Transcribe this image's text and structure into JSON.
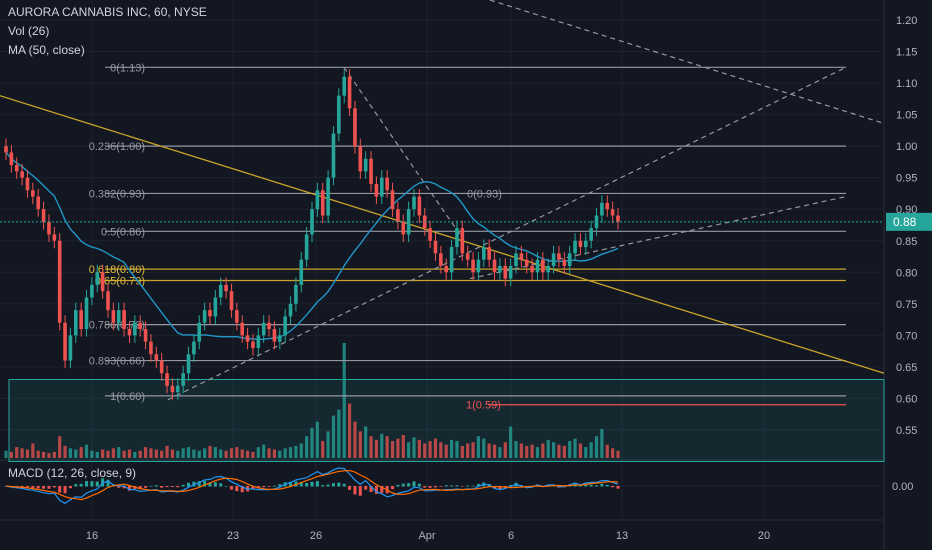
{
  "header": {
    "title": "AURORA CANNABIS INC, 60, NYSE",
    "vol_label": "Vol (26)",
    "ma_label": "MA (50, close)",
    "macd_label": "MACD (12, 26, close, 9)"
  },
  "colors": {
    "background": "#131722",
    "grid": "#1e222d",
    "up": "#26a69a",
    "down": "#ef5350",
    "fib_line": "#9598a1",
    "fib_golden": "#c9a32a",
    "trendline": "#c9a32a",
    "ma": "#2196c8",
    "macd": "#2196f3",
    "signal": "#ff6d00",
    "price_tag": "#26a69a",
    "red_level": "#ef5350"
  },
  "price_tag": "0.88",
  "macd_tick": "0.00",
  "chart_data": {
    "type": "candlestick",
    "ylim": [
      0.5,
      1.22
    ],
    "y_ticks": [
      "1.20",
      "1.15",
      "1.10",
      "1.05",
      "1.00",
      "0.95",
      "0.90",
      "0.85",
      "0.80",
      "0.75",
      "0.70",
      "0.65",
      "0.60",
      "0.55"
    ],
    "x_ticks": [
      "16",
      "23",
      "26",
      "Apr",
      "6",
      "13",
      "20"
    ],
    "last_price": 0.88,
    "fib_levels": [
      {
        "label": "0(1.13)",
        "value": 1.125
      },
      {
        "label": "0.236(1.00)",
        "value": 1.0
      },
      {
        "label": "0.382(0.93)",
        "value": 0.925
      },
      {
        "label": "0.5(0.86)",
        "value": 0.865
      },
      {
        "label": "0.618(0.80)",
        "value": 0.805,
        "golden": true
      },
      {
        "label": "0.65(0.79)",
        "value": 0.787,
        "golden": true
      },
      {
        "label": "0.786(0.72)",
        "value": 0.717
      },
      {
        "label": "0.893(0.66)",
        "value": 0.66
      },
      {
        "label": "1(0.60)",
        "value": 0.604
      }
    ],
    "fib_extension_label": "0(0.93)",
    "red_level": {
      "label": "1(0.59)",
      "value": 0.59
    },
    "closes": [
      0.99,
      0.97,
      0.96,
      0.95,
      0.93,
      0.92,
      0.9,
      0.88,
      0.86,
      0.85,
      0.72,
      0.66,
      0.7,
      0.74,
      0.71,
      0.76,
      0.78,
      0.8,
      0.77,
      0.74,
      0.72,
      0.74,
      0.71,
      0.7,
      0.72,
      0.71,
      0.69,
      0.67,
      0.66,
      0.64,
      0.62,
      0.61,
      0.62,
      0.64,
      0.67,
      0.69,
      0.72,
      0.74,
      0.73,
      0.76,
      0.78,
      0.77,
      0.74,
      0.72,
      0.7,
      0.69,
      0.68,
      0.7,
      0.72,
      0.71,
      0.69,
      0.7,
      0.73,
      0.75,
      0.78,
      0.82,
      0.86,
      0.9,
      0.93,
      0.89,
      0.95,
      1.02,
      1.08,
      1.11,
      1.06,
      1.0,
      0.96,
      0.98,
      0.94,
      0.92,
      0.95,
      0.93,
      0.9,
      0.88,
      0.86,
      0.9,
      0.92,
      0.89,
      0.87,
      0.85,
      0.83,
      0.81,
      0.8,
      0.84,
      0.87,
      0.83,
      0.82,
      0.8,
      0.82,
      0.84,
      0.82,
      0.8,
      0.81,
      0.79,
      0.81,
      0.83,
      0.82,
      0.81,
      0.8,
      0.82,
      0.8,
      0.81,
      0.83,
      0.82,
      0.81,
      0.83,
      0.85,
      0.84,
      0.85,
      0.87,
      0.89,
      0.91,
      0.9,
      0.89,
      0.88
    ],
    "volume": [
      6,
      5,
      9,
      8,
      7,
      12,
      6,
      5,
      4,
      5,
      18,
      10,
      8,
      7,
      9,
      11,
      6,
      5,
      7,
      6,
      8,
      9,
      6,
      7,
      5,
      6,
      9,
      8,
      7,
      6,
      10,
      7,
      6,
      8,
      9,
      7,
      6,
      8,
      10,
      9,
      7,
      6,
      8,
      9,
      7,
      6,
      5,
      9,
      11,
      8,
      7,
      6,
      8,
      9,
      10,
      12,
      18,
      25,
      30,
      14,
      22,
      35,
      40,
      95,
      45,
      30,
      22,
      26,
      18,
      15,
      20,
      18,
      14,
      16,
      19,
      13,
      17,
      15,
      12,
      14,
      16,
      13,
      11,
      15,
      14,
      10,
      12,
      13,
      18,
      16,
      12,
      11,
      9,
      13,
      26,
      14,
      12,
      10,
      11,
      9,
      12,
      15,
      13,
      11,
      10,
      14,
      16,
      12,
      9,
      13,
      18,
      24,
      11,
      8,
      6
    ],
    "ma_label_series": "MA (50, close)",
    "macd_ylim": [
      -0.05,
      0.05
    ]
  }
}
